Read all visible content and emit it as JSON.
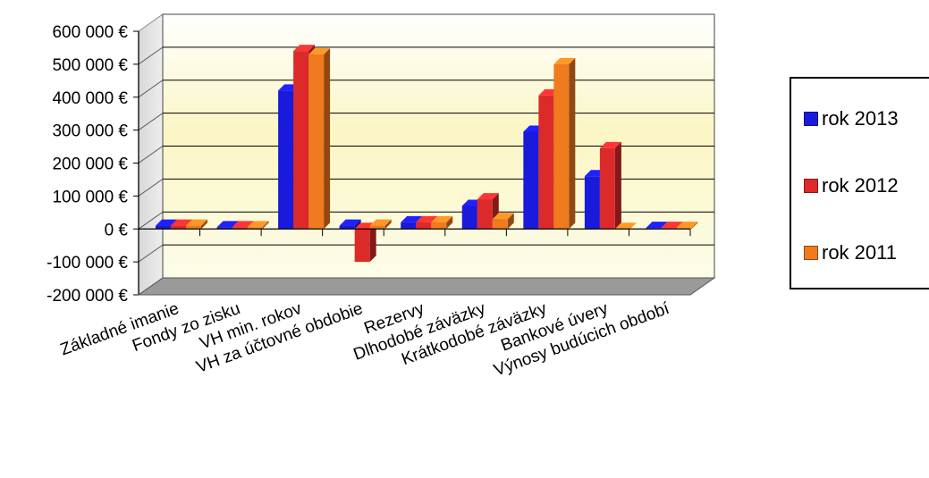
{
  "chart_data": {
    "type": "bar",
    "categories": [
      "Základné imanie",
      "Fondy zo zisku",
      "VH min. rokov",
      "VH za účtovné obdobie",
      "Rezervy",
      "Dlhodobé záväzky",
      "Krátkodobé záväzky",
      "Bankové úvery",
      "Výnosy budúcich období"
    ],
    "series": [
      {
        "name": "rok 2013",
        "color": "#1a1adc",
        "values": [
          10000,
          5000,
          420000,
          10000,
          20000,
          70000,
          295000,
          160000,
          3000
        ]
      },
      {
        "name": "rok 2012",
        "color": "#dc2a2a",
        "values": [
          10000,
          5000,
          540000,
          -100000,
          20000,
          90000,
          405000,
          245000,
          3000
        ]
      },
      {
        "name": "rok 2011",
        "color": "#f07a1e",
        "values": [
          10000,
          5000,
          530000,
          10000,
          20000,
          30000,
          500000,
          0,
          3000
        ]
      }
    ],
    "y_ticks": [
      "600 000 €",
      "500 000 €",
      "400 000 €",
      "300 000 €",
      "200 000 €",
      "100 000 €",
      "0 €",
      "-100 000 €",
      "-200 000 €"
    ],
    "ylim": [
      -200000,
      600000
    ],
    "grid": true,
    "legend_position": "right"
  }
}
